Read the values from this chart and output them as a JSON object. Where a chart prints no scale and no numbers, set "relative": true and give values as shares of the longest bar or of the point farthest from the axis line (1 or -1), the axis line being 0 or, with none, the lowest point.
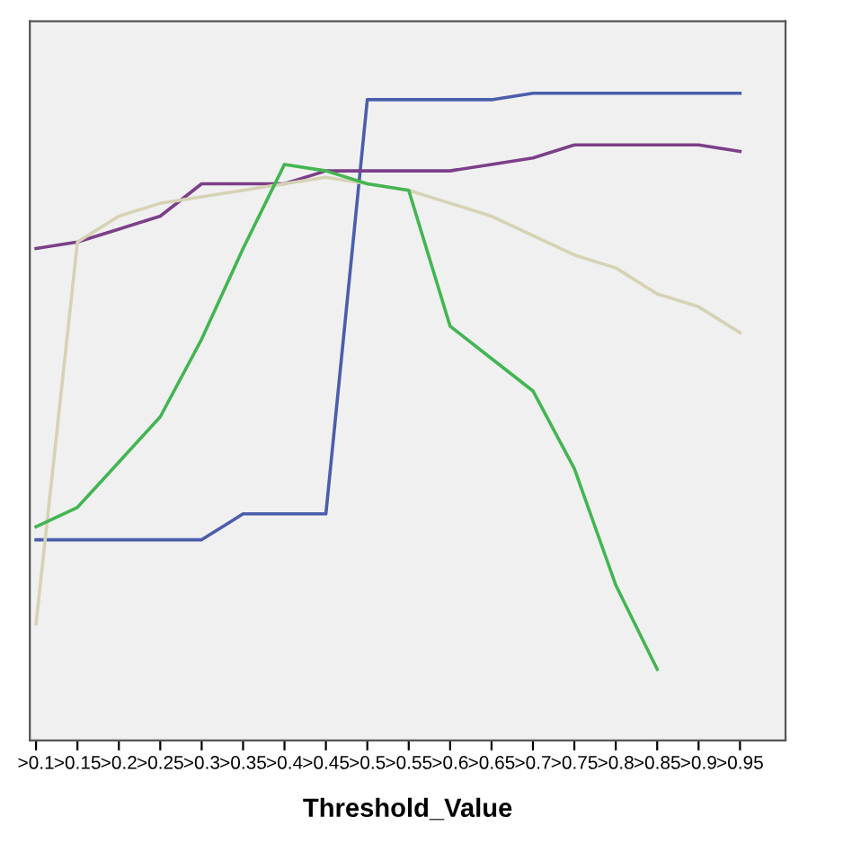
{
  "chart_data": {
    "type": "line",
    "relative": true,
    "xlabel": "Threshold_Value",
    "grid": false,
    "legend": false,
    "marker": "none",
    "line_style": "solid",
    "categories": [
      ">0.1",
      ">0.15",
      ">0.2",
      ">0.25",
      ">0.3",
      ">0.35",
      ">0.4",
      ">0.45",
      ">0.5",
      ">0.55",
      ">0.6",
      ">0.65",
      ">0.7",
      ">0.75",
      ">0.8",
      ">0.85",
      ">0.9",
      ">0.95"
    ],
    "series": [
      {
        "color": "#4a5eab",
        "values": [
          0.31,
          0.31,
          0.31,
          0.31,
          0.31,
          0.35,
          0.35,
          0.35,
          0.99,
          0.99,
          0.99,
          0.99,
          1,
          1,
          1,
          1,
          1,
          1
        ]
      },
      {
        "color": "#7c3f88",
        "values": [
          0.76,
          0.77,
          0.79,
          0.81,
          0.86,
          0.86,
          0.86,
          0.88,
          0.88,
          0.88,
          0.88,
          0.89,
          0.9,
          0.92,
          0.92,
          0.92,
          0.92,
          0.91
        ]
      },
      {
        "color": "#d6d2b4",
        "values": [
          0.18,
          0.77,
          0.81,
          0.83,
          0.84,
          0.85,
          0.86,
          0.87,
          0.86,
          0.85,
          0.83,
          0.81,
          0.78,
          0.75,
          0.73,
          0.69,
          0.67,
          0.63
        ]
      },
      {
        "color": "#43b552",
        "values": [
          0.33,
          0.36,
          0.43,
          0.5,
          0.62,
          0.76,
          0.89,
          0.88,
          0.86,
          0.85,
          0.64,
          0.59,
          0.54,
          0.42,
          0.24,
          0.11,
          null,
          null
        ]
      }
    ]
  }
}
